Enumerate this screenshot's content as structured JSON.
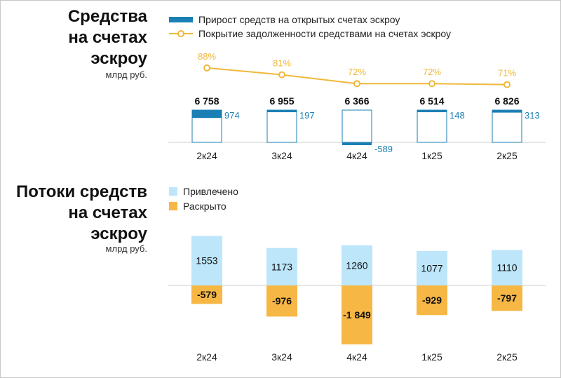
{
  "top": {
    "title_lines": [
      "Средства",
      "на счетах",
      "эскроу"
    ],
    "unit": "млрд руб.",
    "legend": {
      "bars": "Прирост средств на открытых счетах эскроу",
      "line": "Покрытие задолженности средствами на счетах эскроу"
    }
  },
  "bottom": {
    "title_lines": [
      "Потоки средств",
      "на счетах",
      "эскроу"
    ],
    "unit": "млрд руб.",
    "legend": {
      "inflow": "Привлечено",
      "outflow": "Раскрыто"
    }
  },
  "colors": {
    "growth": "#1a7fb5",
    "coverage": "#f0b83a",
    "inflow": "#bde6fa",
    "outflow": "#f7b745",
    "outline": "#1a7fb5",
    "axis": "#cfcfcf"
  },
  "chart_data": [
    {
      "type": "bar",
      "title": "Средства на счетах эскроу",
      "ylabel": "млрд руб.",
      "categories": [
        "2к24",
        "3к24",
        "4к24",
        "1к25",
        "2к25"
      ],
      "totals": [
        "6 758",
        "6 955",
        "6 366",
        "6 514",
        "6 826"
      ],
      "series": [
        {
          "name": "Прирост средств на открытых счетах эскроу",
          "values": [
            974,
            197,
            -589,
            148,
            313
          ]
        },
        {
          "name": "Покрытие задолженности средствами на счетах эскроу",
          "type": "line",
          "values": [
            88,
            81,
            72,
            72,
            71
          ],
          "labels": [
            "88%",
            "81%",
            "72%",
            "72%",
            "71%"
          ]
        }
      ]
    },
    {
      "type": "bar",
      "title": "Потоки средств на счетах эскроу",
      "ylabel": "млрд руб.",
      "categories": [
        "2к24",
        "3к24",
        "4к24",
        "1к25",
        "2к25"
      ],
      "series": [
        {
          "name": "Привлечено",
          "values": [
            1553,
            1173,
            1260,
            1077,
            1110
          ],
          "labels": [
            "1553",
            "1173",
            "1260",
            "1077",
            "1110"
          ]
        },
        {
          "name": "Раскрыто",
          "values": [
            -579,
            -976,
            -1849,
            -929,
            -797
          ],
          "labels": [
            "-579",
            "-976",
            "-1 849",
            "-929",
            "-797"
          ]
        }
      ]
    }
  ]
}
